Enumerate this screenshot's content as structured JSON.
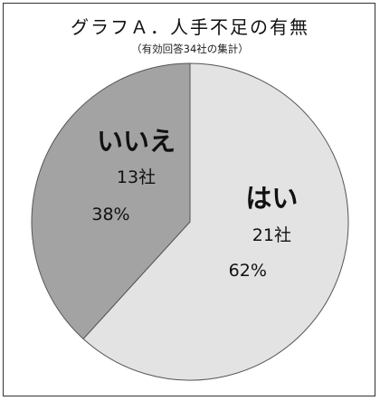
{
  "chart_data": {
    "type": "pie",
    "title": "グラフＡ．人手不足の有無",
    "subtitle": "（有効回答34社の集計）",
    "slices": [
      {
        "label": "はい",
        "count_label": "21社",
        "value": 21,
        "percent_label": "62%",
        "color": "#e3e3e3"
      },
      {
        "label": "いいえ",
        "count_label": "13社",
        "value": 13,
        "percent_label": "38%",
        "color": "#a3a3a3"
      }
    ],
    "start": "top",
    "direction": "clockwise",
    "legend": "none"
  }
}
